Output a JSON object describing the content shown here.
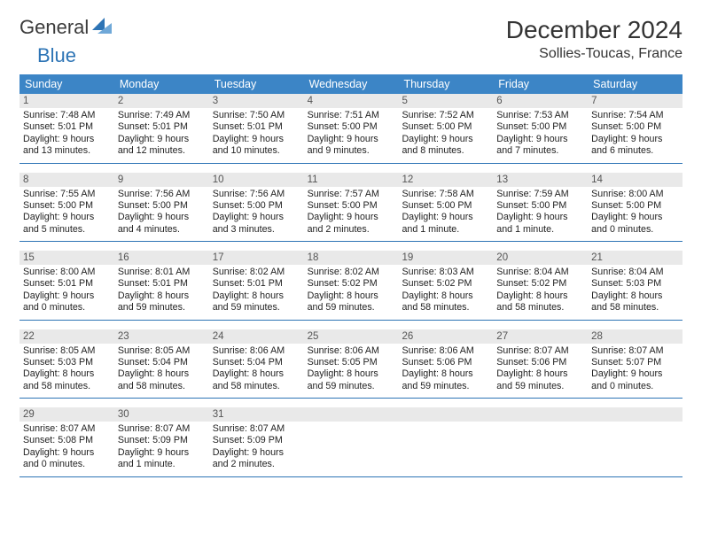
{
  "brand": {
    "part1": "General",
    "part2": "Blue"
  },
  "title": "December 2024",
  "location": "Sollies-Toucas, France",
  "colors": {
    "header_bg": "#3c85c6",
    "header_text": "#ffffff",
    "daynum_bg": "#e9e9e9",
    "week_border": "#2d74b5",
    "brand_blue": "#2d74b5",
    "text": "#222222"
  },
  "fonts": {
    "title_size": 28,
    "location_size": 16,
    "header_size": 12.5,
    "daynum_size": 11.5,
    "body_size": 10.7
  },
  "weekdays": [
    "Sunday",
    "Monday",
    "Tuesday",
    "Wednesday",
    "Thursday",
    "Friday",
    "Saturday"
  ],
  "weeks": [
    [
      {
        "n": "1",
        "sr": "Sunrise: 7:48 AM",
        "ss": "Sunset: 5:01 PM",
        "d1": "Daylight: 9 hours",
        "d2": "and 13 minutes."
      },
      {
        "n": "2",
        "sr": "Sunrise: 7:49 AM",
        "ss": "Sunset: 5:01 PM",
        "d1": "Daylight: 9 hours",
        "d2": "and 12 minutes."
      },
      {
        "n": "3",
        "sr": "Sunrise: 7:50 AM",
        "ss": "Sunset: 5:01 PM",
        "d1": "Daylight: 9 hours",
        "d2": "and 10 minutes."
      },
      {
        "n": "4",
        "sr": "Sunrise: 7:51 AM",
        "ss": "Sunset: 5:00 PM",
        "d1": "Daylight: 9 hours",
        "d2": "and 9 minutes."
      },
      {
        "n": "5",
        "sr": "Sunrise: 7:52 AM",
        "ss": "Sunset: 5:00 PM",
        "d1": "Daylight: 9 hours",
        "d2": "and 8 minutes."
      },
      {
        "n": "6",
        "sr": "Sunrise: 7:53 AM",
        "ss": "Sunset: 5:00 PM",
        "d1": "Daylight: 9 hours",
        "d2": "and 7 minutes."
      },
      {
        "n": "7",
        "sr": "Sunrise: 7:54 AM",
        "ss": "Sunset: 5:00 PM",
        "d1": "Daylight: 9 hours",
        "d2": "and 6 minutes."
      }
    ],
    [
      {
        "n": "8",
        "sr": "Sunrise: 7:55 AM",
        "ss": "Sunset: 5:00 PM",
        "d1": "Daylight: 9 hours",
        "d2": "and 5 minutes."
      },
      {
        "n": "9",
        "sr": "Sunrise: 7:56 AM",
        "ss": "Sunset: 5:00 PM",
        "d1": "Daylight: 9 hours",
        "d2": "and 4 minutes."
      },
      {
        "n": "10",
        "sr": "Sunrise: 7:56 AM",
        "ss": "Sunset: 5:00 PM",
        "d1": "Daylight: 9 hours",
        "d2": "and 3 minutes."
      },
      {
        "n": "11",
        "sr": "Sunrise: 7:57 AM",
        "ss": "Sunset: 5:00 PM",
        "d1": "Daylight: 9 hours",
        "d2": "and 2 minutes."
      },
      {
        "n": "12",
        "sr": "Sunrise: 7:58 AM",
        "ss": "Sunset: 5:00 PM",
        "d1": "Daylight: 9 hours",
        "d2": "and 1 minute."
      },
      {
        "n": "13",
        "sr": "Sunrise: 7:59 AM",
        "ss": "Sunset: 5:00 PM",
        "d1": "Daylight: 9 hours",
        "d2": "and 1 minute."
      },
      {
        "n": "14",
        "sr": "Sunrise: 8:00 AM",
        "ss": "Sunset: 5:00 PM",
        "d1": "Daylight: 9 hours",
        "d2": "and 0 minutes."
      }
    ],
    [
      {
        "n": "15",
        "sr": "Sunrise: 8:00 AM",
        "ss": "Sunset: 5:01 PM",
        "d1": "Daylight: 9 hours",
        "d2": "and 0 minutes."
      },
      {
        "n": "16",
        "sr": "Sunrise: 8:01 AM",
        "ss": "Sunset: 5:01 PM",
        "d1": "Daylight: 8 hours",
        "d2": "and 59 minutes."
      },
      {
        "n": "17",
        "sr": "Sunrise: 8:02 AM",
        "ss": "Sunset: 5:01 PM",
        "d1": "Daylight: 8 hours",
        "d2": "and 59 minutes."
      },
      {
        "n": "18",
        "sr": "Sunrise: 8:02 AM",
        "ss": "Sunset: 5:02 PM",
        "d1": "Daylight: 8 hours",
        "d2": "and 59 minutes."
      },
      {
        "n": "19",
        "sr": "Sunrise: 8:03 AM",
        "ss": "Sunset: 5:02 PM",
        "d1": "Daylight: 8 hours",
        "d2": "and 58 minutes."
      },
      {
        "n": "20",
        "sr": "Sunrise: 8:04 AM",
        "ss": "Sunset: 5:02 PM",
        "d1": "Daylight: 8 hours",
        "d2": "and 58 minutes."
      },
      {
        "n": "21",
        "sr": "Sunrise: 8:04 AM",
        "ss": "Sunset: 5:03 PM",
        "d1": "Daylight: 8 hours",
        "d2": "and 58 minutes."
      }
    ],
    [
      {
        "n": "22",
        "sr": "Sunrise: 8:05 AM",
        "ss": "Sunset: 5:03 PM",
        "d1": "Daylight: 8 hours",
        "d2": "and 58 minutes."
      },
      {
        "n": "23",
        "sr": "Sunrise: 8:05 AM",
        "ss": "Sunset: 5:04 PM",
        "d1": "Daylight: 8 hours",
        "d2": "and 58 minutes."
      },
      {
        "n": "24",
        "sr": "Sunrise: 8:06 AM",
        "ss": "Sunset: 5:04 PM",
        "d1": "Daylight: 8 hours",
        "d2": "and 58 minutes."
      },
      {
        "n": "25",
        "sr": "Sunrise: 8:06 AM",
        "ss": "Sunset: 5:05 PM",
        "d1": "Daylight: 8 hours",
        "d2": "and 59 minutes."
      },
      {
        "n": "26",
        "sr": "Sunrise: 8:06 AM",
        "ss": "Sunset: 5:06 PM",
        "d1": "Daylight: 8 hours",
        "d2": "and 59 minutes."
      },
      {
        "n": "27",
        "sr": "Sunrise: 8:07 AM",
        "ss": "Sunset: 5:06 PM",
        "d1": "Daylight: 8 hours",
        "d2": "and 59 minutes."
      },
      {
        "n": "28",
        "sr": "Sunrise: 8:07 AM",
        "ss": "Sunset: 5:07 PM",
        "d1": "Daylight: 9 hours",
        "d2": "and 0 minutes."
      }
    ],
    [
      {
        "n": "29",
        "sr": "Sunrise: 8:07 AM",
        "ss": "Sunset: 5:08 PM",
        "d1": "Daylight: 9 hours",
        "d2": "and 0 minutes."
      },
      {
        "n": "30",
        "sr": "Sunrise: 8:07 AM",
        "ss": "Sunset: 5:09 PM",
        "d1": "Daylight: 9 hours",
        "d2": "and 1 minute."
      },
      {
        "n": "31",
        "sr": "Sunrise: 8:07 AM",
        "ss": "Sunset: 5:09 PM",
        "d1": "Daylight: 9 hours",
        "d2": "and 2 minutes."
      },
      {
        "empty": true
      },
      {
        "empty": true
      },
      {
        "empty": true
      },
      {
        "empty": true
      }
    ]
  ]
}
